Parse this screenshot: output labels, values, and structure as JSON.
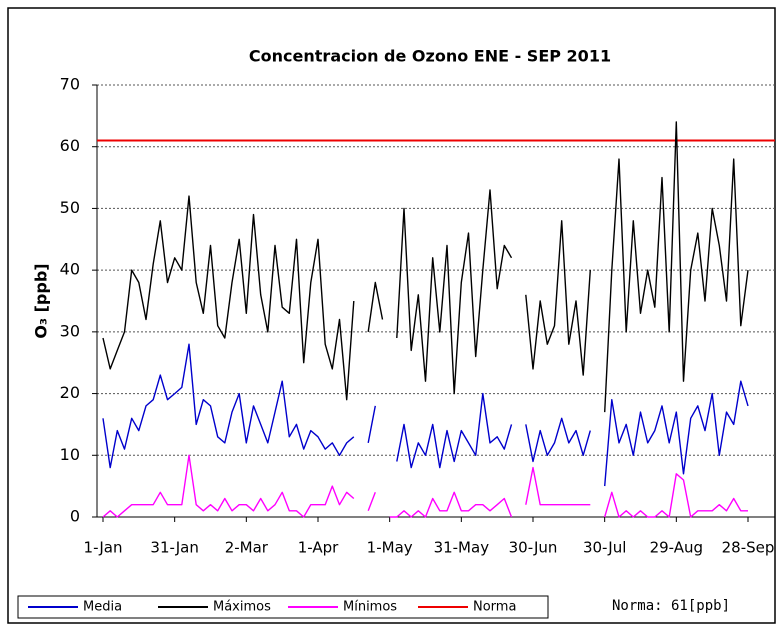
{
  "chart_data": {
    "type": "line",
    "title": "Concentracion de Ozono  ENE - SEP 2011",
    "ylabel": "O₃ [ppb]",
    "categories": [
      "1-Jan",
      null,
      null,
      null,
      null,
      null,
      null,
      null,
      null,
      null,
      "31-Jan",
      null,
      null,
      null,
      null,
      null,
      null,
      null,
      null,
      null,
      "2-Mar",
      null,
      null,
      null,
      null,
      null,
      null,
      null,
      null,
      null,
      "1-Apr",
      null,
      null,
      null,
      null,
      null,
      null,
      null,
      null,
      null,
      "1-May",
      null,
      null,
      null,
      null,
      null,
      null,
      null,
      null,
      null,
      "31-May",
      null,
      null,
      null,
      null,
      null,
      null,
      null,
      null,
      null,
      "30-Jun",
      null,
      null,
      null,
      null,
      null,
      null,
      null,
      null,
      null,
      "30-Jul",
      null,
      null,
      null,
      null,
      null,
      null,
      null,
      null,
      null,
      "29-Aug",
      null,
      null,
      null,
      null,
      null,
      null,
      null,
      null,
      null,
      "28-Sep"
    ],
    "series": [
      {
        "name": "Media",
        "color": "#0000cc",
        "values": [
          16,
          8,
          14,
          11,
          16,
          14,
          18,
          19,
          23,
          19,
          20,
          21,
          28,
          15,
          19,
          18,
          13,
          12,
          17,
          20,
          12,
          18,
          15,
          12,
          17,
          22,
          13,
          15,
          11,
          14,
          13,
          11,
          12,
          10,
          12,
          13,
          null,
          12,
          18,
          null,
          null,
          9,
          15,
          8,
          12,
          10,
          15,
          8,
          14,
          9,
          14,
          12,
          10,
          20,
          12,
          13,
          11,
          15,
          null,
          15,
          9,
          14,
          10,
          12,
          16,
          12,
          14,
          10,
          14,
          null,
          5,
          19,
          12,
          15,
          10,
          17,
          12,
          14,
          18,
          12,
          17,
          7,
          16,
          18,
          14,
          20,
          10,
          17,
          15,
          22,
          18
        ]
      },
      {
        "name": "Máximos",
        "color": "#000000",
        "values": [
          29,
          24,
          27,
          30,
          40,
          38,
          32,
          41,
          48,
          38,
          42,
          40,
          52,
          38,
          33,
          44,
          31,
          29,
          38,
          45,
          33,
          49,
          36,
          30,
          44,
          34,
          33,
          45,
          25,
          38,
          45,
          28,
          24,
          32,
          19,
          35,
          null,
          30,
          38,
          32,
          null,
          29,
          50,
          27,
          36,
          22,
          42,
          30,
          44,
          20,
          38,
          46,
          26,
          40,
          53,
          37,
          44,
          42,
          null,
          36,
          24,
          35,
          28,
          31,
          48,
          28,
          35,
          23,
          40,
          null,
          17,
          40,
          58,
          30,
          48,
          33,
          40,
          34,
          55,
          30,
          64,
          22,
          40,
          46,
          35,
          50,
          44,
          35,
          58,
          31,
          40
        ]
      },
      {
        "name": "Mínimos",
        "color": "#ff00ff",
        "values": [
          0,
          1,
          0,
          1,
          2,
          2,
          2,
          2,
          4,
          2,
          2,
          2,
          10,
          2,
          1,
          2,
          1,
          3,
          1,
          2,
          2,
          1,
          3,
          1,
          2,
          4,
          1,
          1,
          0,
          2,
          2,
          2,
          5,
          2,
          4,
          3,
          null,
          1,
          4,
          null,
          0,
          0,
          1,
          0,
          1,
          0,
          3,
          1,
          1,
          4,
          1,
          1,
          2,
          2,
          1,
          2,
          3,
          0,
          null,
          2,
          8,
          2,
          2,
          2,
          2,
          2,
          2,
          2,
          2,
          null,
          0,
          4,
          0,
          1,
          0,
          1,
          0,
          0,
          1,
          0,
          7,
          6,
          0,
          1,
          1,
          1,
          2,
          1,
          3,
          1,
          1
        ]
      }
    ],
    "reference": {
      "name": "Norma",
      "value": 61,
      "color": "#ee0000"
    },
    "annotation": "Norma: 61[ppb]",
    "ylim": [
      0,
      70
    ],
    "yticks": [
      0,
      10,
      20,
      30,
      40,
      50,
      60,
      70
    ],
    "grid": true
  }
}
